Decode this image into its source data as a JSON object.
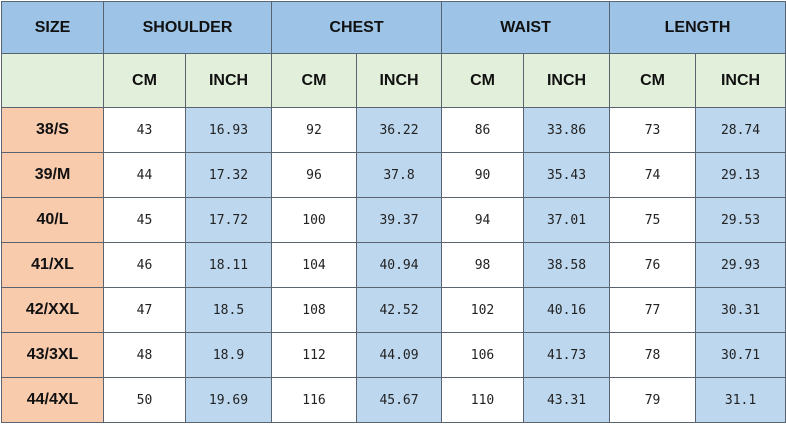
{
  "headers": {
    "size": "SIZE",
    "groups": [
      "SHOULDER",
      "CHEST",
      "WAIST",
      "LENGTH"
    ],
    "cm": "CM",
    "inch": "INCH"
  },
  "colors": {
    "header_blue": "#9dc3e6",
    "unit_green": "#e2efda",
    "size_orange": "#f8cbad",
    "inch_blue": "#bdd7ee"
  },
  "rows": [
    {
      "size": "38/S",
      "values": [
        "43",
        "16.93",
        "92",
        "36.22",
        "86",
        "33.86",
        "73",
        "28.74"
      ]
    },
    {
      "size": "39/M",
      "values": [
        "44",
        "17.32",
        "96",
        "37.8",
        "90",
        "35.43",
        "74",
        "29.13"
      ]
    },
    {
      "size": "40/L",
      "values": [
        "45",
        "17.72",
        "100",
        "39.37",
        "94",
        "37.01",
        "75",
        "29.53"
      ]
    },
    {
      "size": "41/XL",
      "values": [
        "46",
        "18.11",
        "104",
        "40.94",
        "98",
        "38.58",
        "76",
        "29.93"
      ]
    },
    {
      "size": "42/XXL",
      "values": [
        "47",
        "18.5",
        "108",
        "42.52",
        "102",
        "40.16",
        "77",
        "30.31"
      ]
    },
    {
      "size": "43/3XL",
      "values": [
        "48",
        "18.9",
        "112",
        "44.09",
        "106",
        "41.73",
        "78",
        "30.71"
      ]
    },
    {
      "size": "44/4XL",
      "values": [
        "50",
        "19.69",
        "116",
        "45.67",
        "110",
        "43.31",
        "79",
        "31.1"
      ]
    }
  ]
}
